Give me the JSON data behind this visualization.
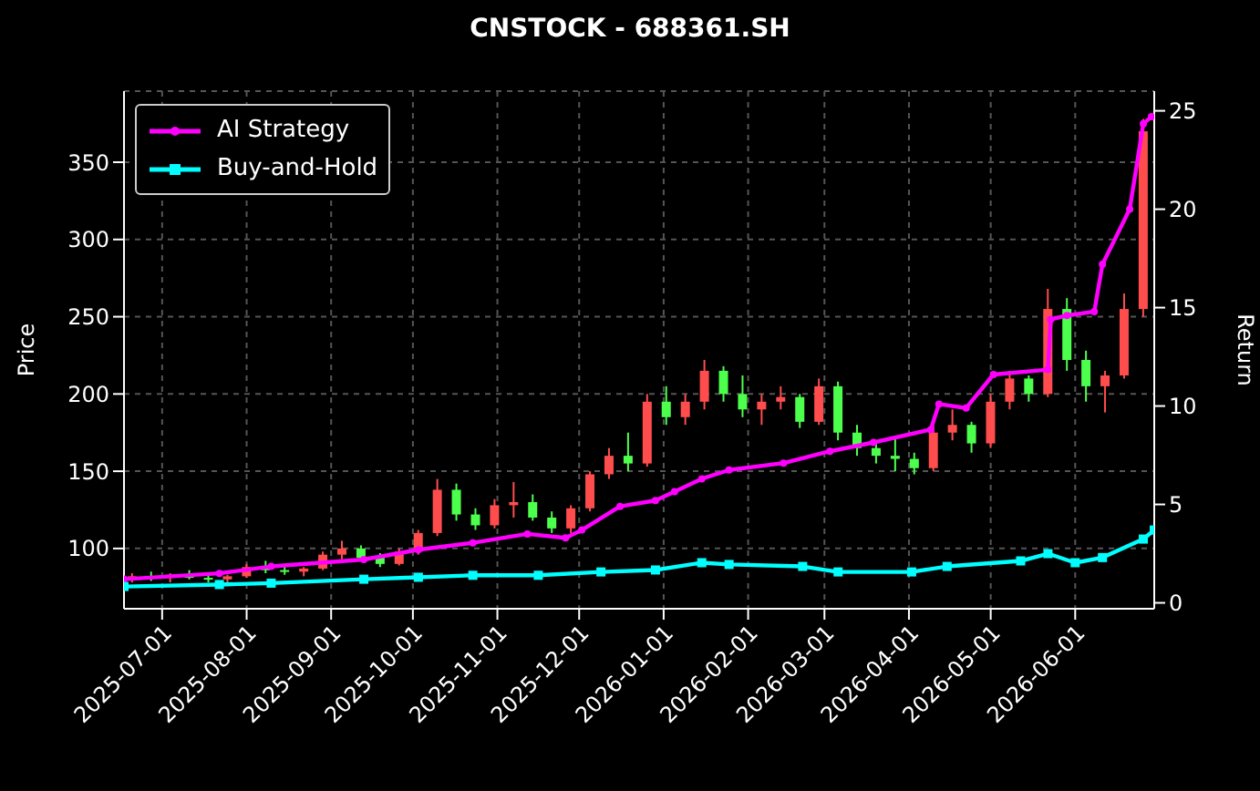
{
  "chart_data": {
    "type": "candlestick",
    "title": "CNSTOCK - 688361.SH",
    "ylabel": "Price",
    "y2label": "Return",
    "x": [
      "2025-06-20",
      "2025-06-27",
      "2025-07-04",
      "2025-07-11",
      "2025-07-18",
      "2025-07-25",
      "2025-08-01",
      "2025-08-08",
      "2025-08-15",
      "2025-08-22",
      "2025-08-29",
      "2025-09-05",
      "2025-09-12",
      "2025-09-19",
      "2025-09-26",
      "2025-10-03",
      "2025-10-10",
      "2025-10-17",
      "2025-10-24",
      "2025-10-31",
      "2025-11-07",
      "2025-11-14",
      "2025-11-21",
      "2025-11-28",
      "2025-12-05",
      "2025-12-12",
      "2025-12-19",
      "2025-12-26",
      "2026-01-02",
      "2026-01-09",
      "2026-01-16",
      "2026-01-23",
      "2026-01-30",
      "2026-02-06",
      "2026-02-13",
      "2026-02-20",
      "2026-02-27",
      "2026-03-06",
      "2026-03-13",
      "2026-03-20",
      "2026-03-27",
      "2026-04-03",
      "2026-04-10",
      "2026-04-17",
      "2026-04-24",
      "2026-05-01",
      "2026-05-08",
      "2026-05-15",
      "2026-05-22",
      "2026-05-29",
      "2026-06-05",
      "2026-06-12",
      "2026-06-19",
      "2026-06-26"
    ],
    "ohlc": [
      [
        80,
        84,
        78,
        82
      ],
      [
        82,
        85,
        79,
        81
      ],
      [
        81,
        84,
        78,
        83
      ],
      [
        83,
        86,
        80,
        81
      ],
      [
        81,
        84,
        78,
        80
      ],
      [
        80,
        83,
        77,
        82
      ],
      [
        82,
        90,
        81,
        88
      ],
      [
        88,
        92,
        84,
        86
      ],
      [
        86,
        90,
        83,
        85
      ],
      [
        85,
        88,
        82,
        87
      ],
      [
        87,
        98,
        86,
        96
      ],
      [
        96,
        105,
        93,
        100
      ],
      [
        100,
        102,
        92,
        94
      ],
      [
        94,
        97,
        88,
        90
      ],
      [
        90,
        100,
        89,
        98
      ],
      [
        98,
        112,
        96,
        110
      ],
      [
        110,
        145,
        108,
        138
      ],
      [
        138,
        142,
        118,
        122
      ],
      [
        122,
        126,
        112,
        115
      ],
      [
        115,
        132,
        113,
        128
      ],
      [
        128,
        143,
        120,
        130
      ],
      [
        130,
        135,
        118,
        120
      ],
      [
        120,
        124,
        110,
        113
      ],
      [
        113,
        128,
        110,
        126
      ],
      [
        126,
        150,
        124,
        148
      ],
      [
        148,
        165,
        145,
        160
      ],
      [
        160,
        175,
        150,
        155
      ],
      [
        155,
        200,
        153,
        195
      ],
      [
        195,
        205,
        180,
        185
      ],
      [
        185,
        200,
        180,
        195
      ],
      [
        195,
        222,
        190,
        215
      ],
      [
        215,
        218,
        195,
        200
      ],
      [
        200,
        212,
        185,
        190
      ],
      [
        190,
        200,
        180,
        195
      ],
      [
        195,
        205,
        190,
        198
      ],
      [
        198,
        200,
        178,
        182
      ],
      [
        182,
        210,
        180,
        205
      ],
      [
        205,
        208,
        170,
        175
      ],
      [
        175,
        180,
        160,
        165
      ],
      [
        165,
        170,
        155,
        160
      ],
      [
        160,
        172,
        150,
        158
      ],
      [
        158,
        162,
        148,
        152
      ],
      [
        152,
        180,
        150,
        175
      ],
      [
        175,
        190,
        170,
        180
      ],
      [
        180,
        182,
        162,
        168
      ],
      [
        168,
        200,
        165,
        195
      ],
      [
        195,
        215,
        190,
        210
      ],
      [
        210,
        212,
        195,
        200
      ],
      [
        200,
        268,
        198,
        255
      ],
      [
        255,
        262,
        215,
        222
      ],
      [
        222,
        228,
        195,
        205
      ],
      [
        205,
        215,
        188,
        212
      ],
      [
        212,
        265,
        210,
        255
      ],
      [
        255,
        378,
        250,
        370
      ]
    ],
    "colors": [
      "#ff4d4d",
      "#4dff4d",
      "#ff4d4d",
      "#4dff4d",
      "#4dff4d",
      "#ff4d4d",
      "#ff4d4d",
      "#4dff4d",
      "#4dff4d",
      "#ff4d4d",
      "#ff4d4d",
      "#ff4d4d",
      "#4dff4d",
      "#4dff4d",
      "#ff4d4d",
      "#ff4d4d",
      "#ff4d4d",
      "#4dff4d",
      "#4dff4d",
      "#ff4d4d",
      "#ff4d4d",
      "#4dff4d",
      "#4dff4d",
      "#ff4d4d",
      "#ff4d4d",
      "#ff4d4d",
      "#4dff4d",
      "#ff4d4d",
      "#4dff4d",
      "#ff4d4d",
      "#ff4d4d",
      "#4dff4d",
      "#4dff4d",
      "#ff4d4d",
      "#ff4d4d",
      "#4dff4d",
      "#ff4d4d",
      "#4dff4d",
      "#4dff4d",
      "#4dff4d",
      "#4dff4d",
      "#4dff4d",
      "#ff4d4d",
      "#ff4d4d",
      "#4dff4d",
      "#ff4d4d",
      "#ff4d4d",
      "#4dff4d",
      "#ff4d4d",
      "#4dff4d",
      "#4dff4d",
      "#ff4d4d",
      "#ff4d4d",
      "#ff4d4d"
    ],
    "series": [
      {
        "name": "AI Strategy",
        "type": "line",
        "axis": "y2",
        "color": "#ff00ff",
        "marker": "circle",
        "x": [
          "2025-06-17",
          "2025-07-22",
          "2025-08-10",
          "2025-09-13",
          "2025-10-03",
          "2025-10-23",
          "2025-11-12",
          "2025-11-26",
          "2025-12-02",
          "2025-12-16",
          "2025-12-29",
          "2026-01-05",
          "2026-01-15",
          "2026-01-25",
          "2026-02-14",
          "2026-03-03",
          "2026-03-19",
          "2026-04-09",
          "2026-04-12",
          "2026-04-22",
          "2026-05-02",
          "2026-05-22",
          "2026-05-23",
          "2026-05-29",
          "2026-06-08",
          "2026-06-11",
          "2026-06-21",
          "2026-06-26",
          "2026-06-29"
        ],
        "values": [
          1.2,
          1.5,
          1.85,
          2.2,
          2.7,
          3.05,
          3.5,
          3.3,
          3.7,
          4.9,
          5.2,
          5.65,
          6.3,
          6.75,
          7.1,
          7.7,
          8.15,
          8.8,
          10.1,
          9.9,
          11.6,
          11.85,
          14.4,
          14.6,
          14.8,
          17.2,
          20,
          24.35,
          24.7
        ]
      },
      {
        "name": "Buy-and-Hold",
        "type": "line",
        "axis": "y2",
        "color": "#00ffff",
        "marker": "square",
        "x": [
          "2025-06-17",
          "2025-07-22",
          "2025-08-10",
          "2025-09-13",
          "2025-10-03",
          "2025-10-23",
          "2025-11-16",
          "2025-12-09",
          "2025-12-29",
          "2026-01-15",
          "2026-01-25",
          "2026-02-21",
          "2026-03-06",
          "2026-04-02",
          "2026-04-15",
          "2026-05-12",
          "2026-05-22",
          "2026-06-01",
          "2026-06-11",
          "2026-06-26",
          "2026-06-30"
        ],
        "values": [
          0.83,
          0.93,
          1.0,
          1.2,
          1.3,
          1.4,
          1.4,
          1.57,
          1.67,
          2.04,
          1.95,
          1.85,
          1.57,
          1.57,
          1.85,
          2.13,
          2.5,
          2.04,
          2.3,
          3.24,
          3.7
        ]
      }
    ],
    "xlim": [
      "2025-06-17",
      "2026-06-30"
    ],
    "xticks": [
      "2025-07-01",
      "2025-08-01",
      "2025-09-01",
      "2025-10-01",
      "2025-11-01",
      "2025-12-01",
      "2026-01-01",
      "2026-02-01",
      "2026-03-01",
      "2026-04-01",
      "2026-05-01",
      "2026-06-01"
    ],
    "ylim": [
      61,
      396
    ],
    "yticks": [
      100,
      150,
      200,
      250,
      300,
      350
    ],
    "y2lim": [
      -0.3,
      26
    ],
    "y2ticks": [
      0,
      5,
      10,
      15,
      20,
      25
    ],
    "grid": true,
    "legend": "top left"
  }
}
